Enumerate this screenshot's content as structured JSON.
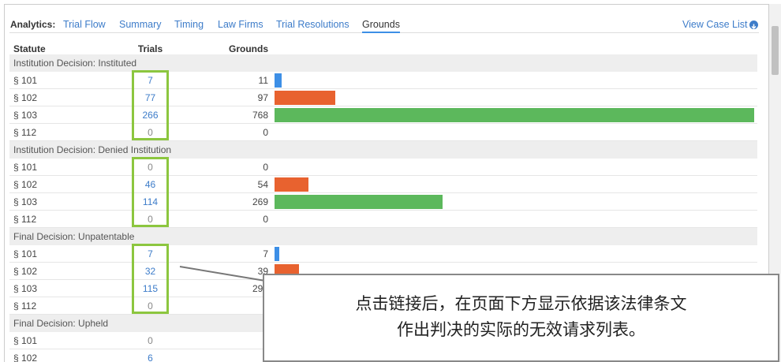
{
  "nav": {
    "label": "Analytics:",
    "tabs": [
      "Trial Flow",
      "Summary",
      "Timing",
      "Law Firms",
      "Trial Resolutions",
      "Grounds"
    ],
    "active_tab": 5,
    "view_case_list": "View Case List"
  },
  "table": {
    "columns": [
      "Statute",
      "Trials",
      "Grounds"
    ],
    "bar_colors": {
      "§ 101": "#3d8fe6",
      "§ 102": "#e8622f",
      "§ 103": "#5cb85c",
      "§ 112": "#999999"
    },
    "groups": [
      {
        "title": "Institution Decision: Instituted",
        "highlighted": true,
        "rows": [
          {
            "statute": "§ 101",
            "trials": 7,
            "grounds": 11
          },
          {
            "statute": "§ 102",
            "trials": 77,
            "grounds": 97
          },
          {
            "statute": "§ 103",
            "trials": 266,
            "grounds": 768
          },
          {
            "statute": "§ 112",
            "trials": 0,
            "grounds": 0
          }
        ]
      },
      {
        "title": "Institution Decision: Denied Institution",
        "highlighted": true,
        "rows": [
          {
            "statute": "§ 101",
            "trials": 0,
            "grounds": 0
          },
          {
            "statute": "§ 102",
            "trials": 46,
            "grounds": 54
          },
          {
            "statute": "§ 103",
            "trials": 114,
            "grounds": 269
          },
          {
            "statute": "§ 112",
            "trials": 0,
            "grounds": 0
          }
        ]
      },
      {
        "title": "Final Decision: Unpatentable",
        "highlighted": true,
        "rows": [
          {
            "statute": "§ 101",
            "trials": 7,
            "grounds": 7
          },
          {
            "statute": "§ 102",
            "trials": 32,
            "grounds": 39
          },
          {
            "statute": "§ 103",
            "trials": 115,
            "grounds": 290
          },
          {
            "statute": "§ 112",
            "trials": 0,
            "grounds": null
          }
        ]
      },
      {
        "title": "Final Decision: Upheld",
        "highlighted": false,
        "rows": [
          {
            "statute": "§ 101",
            "trials": 0,
            "grounds": null
          },
          {
            "statute": "§ 102",
            "trials": 6,
            "grounds": null
          }
        ]
      }
    ]
  },
  "callout": {
    "lines": [
      "点击链接后，在页面下方显示依据该法律条文",
      "作出判决的实际的无效请求列表。"
    ]
  }
}
